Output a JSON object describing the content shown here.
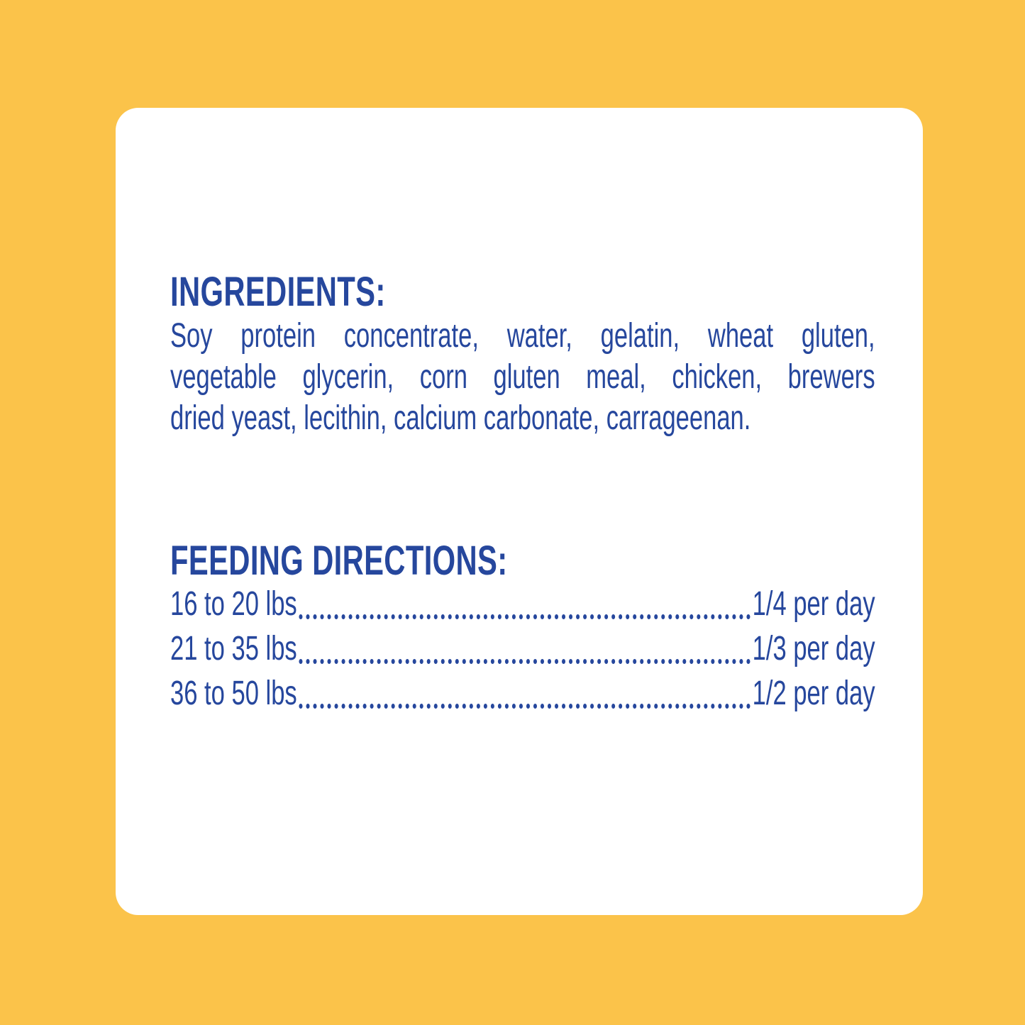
{
  "palette": {
    "background_yellow": "#FBC34A",
    "card_white": "#FFFFFF",
    "text_blue": "#26479D"
  },
  "ingredients": {
    "heading": "INGREDIENTS:",
    "lines": [
      "Soy protein concentrate, water, gelatin, wheat gluten,",
      "vegetable glycerin, corn gluten meal, chicken, brewers",
      "dried yeast, lecithin, calcium carbonate, carrageenan."
    ]
  },
  "feeding": {
    "heading": "FEEDING DIRECTIONS:",
    "rows": [
      {
        "range": "16 to 20 lbs",
        "amount": "1/4 per day"
      },
      {
        "range": "21 to 35 lbs",
        "amount": "1/3 per day"
      },
      {
        "range": "36 to 50 lbs",
        "amount": "1/2 per day"
      }
    ]
  }
}
